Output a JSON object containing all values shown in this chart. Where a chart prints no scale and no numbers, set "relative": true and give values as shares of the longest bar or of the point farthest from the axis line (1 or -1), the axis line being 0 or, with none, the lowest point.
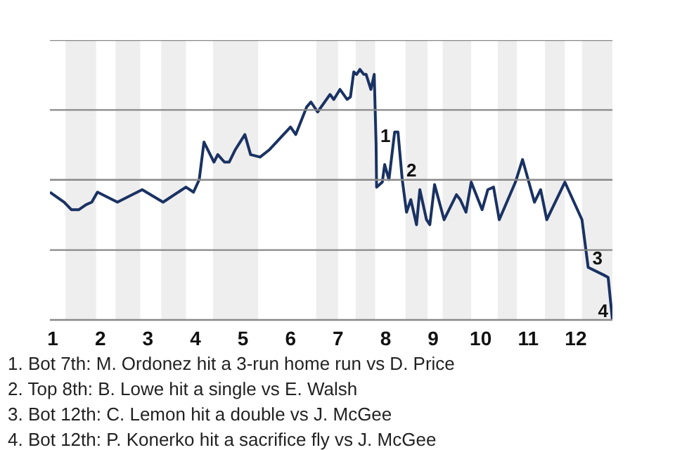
{
  "chart_data": {
    "type": "line",
    "relative": true,
    "x": [
      0.94,
      1.24,
      1.39,
      1.55,
      1.7,
      1.82,
      1.94,
      2.36,
      2.88,
      3.32,
      3.8,
      3.96,
      4.08,
      4.18,
      4.39,
      4.47,
      4.61,
      4.71,
      4.84,
      5.04,
      5.16,
      5.36,
      5.56,
      6.0,
      6.11,
      6.34,
      6.43,
      6.57,
      6.83,
      6.91,
      7.04,
      7.19,
      7.26,
      7.33,
      7.39,
      7.46,
      7.54,
      7.59,
      7.69,
      7.76,
      7.8,
      7.81,
      7.93,
      7.98,
      8.07,
      8.19,
      8.26,
      8.35,
      8.44,
      8.53,
      8.65,
      8.72,
      8.86,
      8.93,
      9.03,
      9.23,
      9.49,
      9.57,
      9.69,
      9.8,
      10.03,
      10.15,
      10.27,
      10.39,
      10.73,
      10.88,
      11.13,
      11.26,
      11.39,
      11.77,
      12.13,
      12.26,
      12.58,
      12.68,
      12.77
    ],
    "series": [
      {
        "color": "#1a3263",
        "values": [
          0.51,
          0.47,
          0.44,
          0.44,
          0.46,
          0.47,
          0.51,
          0.47,
          0.52,
          0.47,
          0.53,
          0.51,
          0.56,
          0.71,
          0.63,
          0.66,
          0.63,
          0.63,
          0.68,
          0.74,
          0.66,
          0.65,
          0.68,
          0.77,
          0.74,
          0.85,
          0.87,
          0.83,
          0.9,
          0.88,
          0.92,
          0.88,
          0.89,
          0.99,
          0.98,
          1.0,
          0.98,
          0.98,
          0.92,
          0.98,
          0.7,
          0.53,
          0.55,
          0.62,
          0.56,
          0.75,
          0.75,
          0.56,
          0.43,
          0.48,
          0.38,
          0.52,
          0.4,
          0.38,
          0.54,
          0.4,
          0.5,
          0.48,
          0.43,
          0.55,
          0.44,
          0.52,
          0.53,
          0.4,
          0.55,
          0.64,
          0.47,
          0.52,
          0.4,
          0.55,
          0.4,
          0.21,
          0.18,
          0.17,
          0.0
        ]
      }
    ],
    "xlim": [
      0.94,
      12.77
    ],
    "xticks": [
      1,
      2,
      3,
      4,
      5,
      6,
      7,
      8,
      9,
      10,
      11,
      12
    ],
    "bands": [
      {
        "axis": "x",
        "from": 1.27,
        "to": 1.91,
        "color": "#eeeeee"
      },
      {
        "axis": "x",
        "from": 2.32,
        "to": 2.84,
        "color": "#eeeeee"
      },
      {
        "axis": "x",
        "from": 3.28,
        "to": 3.8,
        "color": "#eeeeee"
      },
      {
        "axis": "x",
        "from": 4.37,
        "to": 5.32,
        "color": "#eeeeee"
      },
      {
        "axis": "x",
        "from": 6.54,
        "to": 7.0,
        "color": "#eeeeee"
      },
      {
        "axis": "x",
        "from": 7.37,
        "to": 7.78,
        "color": "#eeeeee"
      },
      {
        "axis": "x",
        "from": 8.42,
        "to": 8.88,
        "color": "#eeeeee"
      },
      {
        "axis": "x",
        "from": 9.2,
        "to": 9.8,
        "color": "#eeeeee"
      },
      {
        "axis": "x",
        "from": 10.36,
        "to": 10.76,
        "color": "#eeeeee"
      },
      {
        "axis": "x",
        "from": 11.35,
        "to": 11.77,
        "color": "#eeeeee"
      },
      {
        "axis": "x",
        "from": 12.13,
        "to": 12.77,
        "color": "#eeeeee"
      }
    ],
    "ref_lines": [
      {
        "axis": "y",
        "value": 0.838,
        "color": "#888888"
      },
      {
        "axis": "y",
        "value": 0.559,
        "color": "#888888"
      },
      {
        "axis": "y",
        "value": 0.279,
        "color": "#888888"
      }
    ],
    "annotations": [
      {
        "text": "1",
        "x": 7.8,
        "y": 0.7
      },
      {
        "text": "2",
        "x": 8.35,
        "y": 0.56
      },
      {
        "text": "3",
        "x": 12.26,
        "y": 0.21
      },
      {
        "text": "4",
        "x": 12.77,
        "y": 0.0
      },
      "1. Bot 7th: M. Ordonez hit a 3-run home run vs D. Price",
      "2. Top 8th: B. Lowe hit a single vs E. Walsh",
      "3. Bot 12th: C. Lemon hit a double vs J. McGee",
      "4. Bot 12th: P. Konerko hit a sacrifice fly vs J. McGee"
    ]
  }
}
